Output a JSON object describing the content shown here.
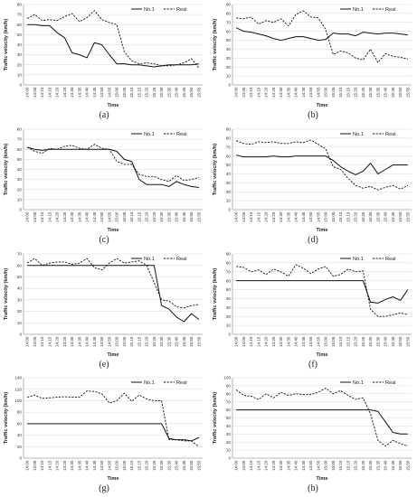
{
  "chart_data": [
    {
      "type": "line",
      "panel_label": "(a)",
      "xlabel": "Time",
      "ylabel": "Traffic velocity (km/h)",
      "ylim": [
        0,
        80
      ],
      "ystep": 10,
      "grid": true,
      "legend": "top-right",
      "categories": [
        "14:00",
        "14:05",
        "14:10",
        "14:15",
        "14:20",
        "14:25",
        "14:30",
        "14:35",
        "14:40",
        "14:45",
        "14:50",
        "14:55",
        "15:00",
        "15:05",
        "15:10",
        "15:15",
        "15:20",
        "15:25",
        "15:30",
        "15:35",
        "15:40",
        "15:45",
        "15:50",
        "15:55"
      ],
      "series": [
        {
          "name": "No.1",
          "style": "solid",
          "values": [
            60,
            60,
            59,
            59,
            52,
            47,
            32,
            30,
            27,
            42,
            40,
            30,
            21,
            21,
            20,
            20,
            19,
            18,
            19,
            20,
            20,
            20,
            20,
            21
          ]
        },
        {
          "name": "Real",
          "style": "dashed",
          "values": [
            66,
            70,
            64,
            65,
            64,
            68,
            71,
            63,
            67,
            74,
            65,
            62,
            60,
            33,
            24,
            21,
            22,
            21,
            19,
            19,
            20,
            22,
            26,
            17
          ]
        }
      ]
    },
    {
      "type": "line",
      "panel_label": "(b)",
      "xlabel": "Time",
      "ylabel": "Traffic velocity (km/h)",
      "ylim": [
        0,
        90
      ],
      "ystep": 10,
      "grid": true,
      "legend": "top-right",
      "categories": [
        "14:00",
        "14:05",
        "14:10",
        "14:15",
        "14:20",
        "14:25",
        "14:30",
        "14:35",
        "14:40",
        "14:45",
        "14:50",
        "14:55",
        "15:00",
        "15:05",
        "15:10",
        "15:15",
        "15:20",
        "15:25",
        "15:30",
        "15:35",
        "15:40",
        "15:45",
        "15:50",
        "15:55"
      ],
      "series": [
        {
          "name": "No.1",
          "style": "solid",
          "values": [
            64,
            60,
            59,
            57,
            55,
            52,
            50,
            52,
            54,
            54,
            52,
            50,
            51,
            58,
            57,
            57,
            55,
            59,
            58,
            57,
            58,
            58,
            57,
            56
          ]
        },
        {
          "name": "Real",
          "style": "dashed",
          "values": [
            75,
            74,
            76,
            68,
            72,
            70,
            74,
            66,
            79,
            83,
            76,
            75,
            62,
            34,
            38,
            36,
            30,
            28,
            40,
            25,
            35,
            32,
            31,
            29
          ]
        }
      ]
    },
    {
      "type": "line",
      "panel_label": "(c)",
      "xlabel": "Time",
      "ylabel": "Traffic velocity (km/h)",
      "ylim": [
        0,
        80
      ],
      "ystep": 10,
      "grid": true,
      "legend": "top-right",
      "categories": [
        "14:00",
        "14:05",
        "14:10",
        "14:15",
        "14:20",
        "14:25",
        "14:30",
        "14:35",
        "14:40",
        "14:45",
        "14:50",
        "14:55",
        "15:00",
        "15:05",
        "15:10",
        "15:15",
        "15:20",
        "15:25",
        "15:30",
        "15:35",
        "15:40",
        "15:45",
        "15:50",
        "15:55"
      ],
      "series": [
        {
          "name": "No.1",
          "style": "solid",
          "values": [
            62,
            60,
            59,
            60,
            60,
            60,
            60,
            60,
            60,
            60,
            60,
            60,
            58,
            50,
            48,
            30,
            25,
            25,
            25,
            23,
            28,
            25,
            23,
            22
          ]
        },
        {
          "name": "Real",
          "style": "dashed",
          "values": [
            62,
            58,
            56,
            61,
            60,
            63,
            64,
            61,
            60,
            65,
            61,
            60,
            48,
            45,
            45,
            35,
            33,
            33,
            30,
            28,
            34,
            29,
            30,
            32
          ]
        }
      ]
    },
    {
      "type": "line",
      "panel_label": "(d)",
      "xlabel": "Time",
      "ylabel": "Traffic velocity (km/h)",
      "ylim": [
        0,
        90
      ],
      "ystep": 10,
      "grid": true,
      "legend": "top-right",
      "categories": [
        "14:00",
        "14:05",
        "14:10",
        "14:15",
        "14:20",
        "14:25",
        "14:30",
        "14:35",
        "14:40",
        "14:45",
        "14:50",
        "14:55",
        "15:00",
        "15:05",
        "15:10",
        "15:15",
        "15:20",
        "15:25",
        "15:30",
        "15:35",
        "15:40",
        "15:45",
        "15:50",
        "15:55"
      ],
      "series": [
        {
          "name": "No.1",
          "style": "solid",
          "values": [
            61,
            59,
            59,
            59,
            59,
            60,
            59,
            59,
            60,
            60,
            60,
            60,
            60,
            55,
            48,
            43,
            39,
            43,
            52,
            40,
            45,
            50,
            50,
            50
          ]
        },
        {
          "name": "Real",
          "style": "dashed",
          "values": [
            77,
            74,
            73,
            76,
            75,
            76,
            74,
            74,
            76,
            75,
            78,
            73,
            68,
            48,
            45,
            35,
            27,
            24,
            26,
            22,
            25,
            27,
            23,
            27
          ]
        }
      ]
    },
    {
      "type": "line",
      "panel_label": "(e)",
      "xlabel": "Time",
      "ylabel": "Traffic velocity (km/h)",
      "ylim": [
        0,
        70
      ],
      "ystep": 10,
      "grid": true,
      "legend": "top-right",
      "categories": [
        "14:00",
        "14:05",
        "14:10",
        "14:15",
        "14:20",
        "14:25",
        "14:30",
        "14:35",
        "14:40",
        "14:45",
        "14:50",
        "14:55",
        "15:00",
        "15:05",
        "15:10",
        "15:15",
        "15:20",
        "15:25",
        "15:30",
        "15:35",
        "15:40",
        "15:45",
        "15:50",
        "15:55"
      ],
      "series": [
        {
          "name": "No.1",
          "style": "solid",
          "values": [
            60,
            60,
            60,
            60,
            60,
            60,
            60,
            60,
            60,
            60,
            60,
            60,
            60,
            60,
            60,
            60,
            60,
            60,
            25,
            22,
            15,
            11,
            18,
            13
          ]
        },
        {
          "name": "Real",
          "style": "dashed",
          "values": [
            62,
            66,
            60,
            62,
            63,
            63,
            61,
            62,
            66,
            58,
            56,
            62,
            66,
            62,
            63,
            64,
            60,
            45,
            30,
            29,
            24,
            23,
            25,
            26
          ]
        }
      ]
    },
    {
      "type": "line",
      "panel_label": "(f)",
      "xlabel": "Time",
      "ylabel": "Traffic velocity (km/h)",
      "ylim": [
        0,
        90
      ],
      "ystep": 10,
      "grid": true,
      "legend": "top-right",
      "categories": [
        "14:00",
        "14:05",
        "14:10",
        "14:15",
        "14:20",
        "14:25",
        "14:30",
        "14:35",
        "14:40",
        "14:45",
        "14:50",
        "14:55",
        "15:00",
        "15:05",
        "15:10",
        "15:15",
        "15:20",
        "15:25",
        "15:30",
        "15:35",
        "15:40",
        "15:45",
        "15:50",
        "15:55"
      ],
      "series": [
        {
          "name": "No.1",
          "style": "solid",
          "values": [
            60,
            60,
            60,
            60,
            60,
            60,
            60,
            60,
            60,
            60,
            60,
            60,
            60,
            60,
            60,
            60,
            60,
            60,
            36,
            35,
            39,
            42,
            38,
            50
          ]
        },
        {
          "name": "Real",
          "style": "dashed",
          "values": [
            76,
            75,
            70,
            72,
            67,
            73,
            70,
            65,
            78,
            74,
            68,
            73,
            76,
            65,
            67,
            73,
            70,
            71,
            28,
            20,
            20,
            22,
            24,
            22
          ]
        }
      ]
    },
    {
      "type": "line",
      "panel_label": "(g)",
      "xlabel": "Time",
      "ylabel": "Traffic velocity (km/h)",
      "ylim": [
        0,
        140
      ],
      "ystep": 20,
      "grid": true,
      "legend": "top-right",
      "categories": [
        "14:00",
        "14:05",
        "14:10",
        "14:15",
        "14:20",
        "14:25",
        "14:30",
        "14:35",
        "14:40",
        "14:45",
        "14:50",
        "14:55",
        "15:00",
        "15:05",
        "15:10",
        "15:15",
        "15:20",
        "15:25",
        "15:30",
        "15:35",
        "15:40",
        "15:45",
        "15:50",
        "15:55"
      ],
      "series": [
        {
          "name": "No.1",
          "style": "solid",
          "values": [
            60,
            60,
            60,
            60,
            60,
            60,
            60,
            60,
            60,
            60,
            60,
            60,
            60,
            60,
            60,
            60,
            60,
            60,
            60,
            34,
            32,
            32,
            30,
            36
          ]
        },
        {
          "name": "Real",
          "style": "dashed",
          "values": [
            106,
            110,
            104,
            105,
            106,
            107,
            106,
            106,
            117,
            116,
            112,
            96,
            100,
            113,
            99,
            110,
            103,
            100,
            100,
            32,
            32,
            30,
            30,
            20
          ]
        }
      ]
    },
    {
      "type": "line",
      "panel_label": "(h)",
      "xlabel": "Time",
      "ylabel": "Traffic velocity (km/h)",
      "ylim": [
        0,
        100
      ],
      "ystep": 10,
      "grid": true,
      "legend": "top-right",
      "categories": [
        "14:00",
        "14:05",
        "14:10",
        "14:15",
        "14:20",
        "14:25",
        "14:30",
        "14:35",
        "14:40",
        "14:45",
        "14:50",
        "14:55",
        "15:00",
        "15:05",
        "15:10",
        "15:15",
        "15:20",
        "15:25",
        "15:30",
        "15:35",
        "15:40",
        "15:45",
        "15:50",
        "15:55"
      ],
      "series": [
        {
          "name": "No.1",
          "style": "solid",
          "values": [
            60,
            60,
            60,
            60,
            60,
            60,
            60,
            60,
            60,
            60,
            60,
            60,
            60,
            60,
            60,
            60,
            60,
            60,
            60,
            58,
            45,
            32,
            30,
            30
          ]
        },
        {
          "name": "Real",
          "style": "dashed",
          "values": [
            85,
            78,
            77,
            73,
            80,
            75,
            82,
            78,
            80,
            79,
            79,
            82,
            87,
            80,
            84,
            78,
            73,
            75,
            55,
            22,
            15,
            22,
            18,
            15
          ]
        }
      ]
    }
  ]
}
